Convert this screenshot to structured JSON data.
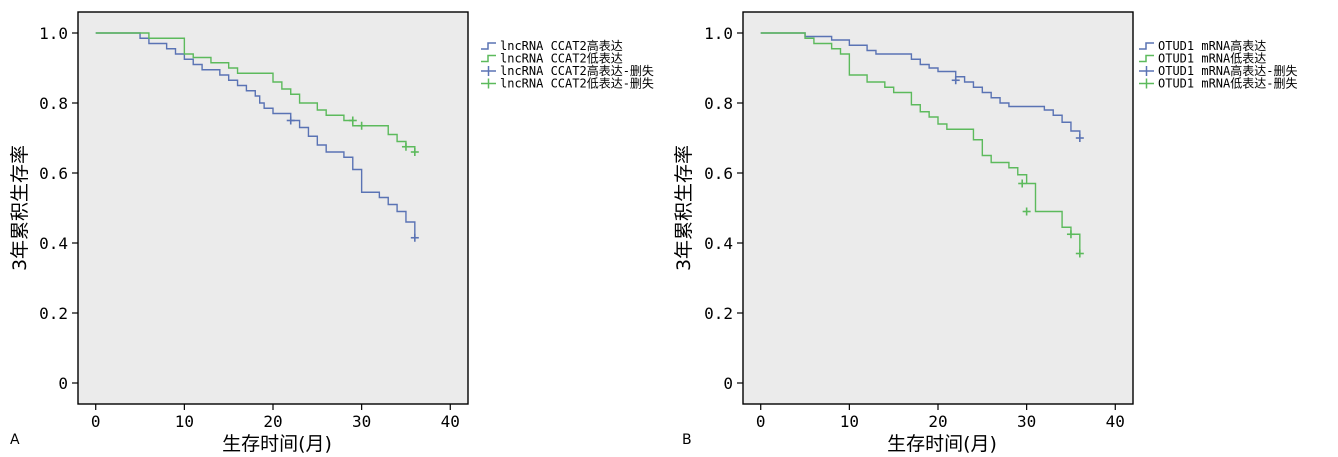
{
  "chart_data": [
    {
      "type": "line",
      "panel_label": "A",
      "xlabel": "生存时间(月)",
      "ylabel": "3年累积生存率",
      "xlim": [
        -2,
        42
      ],
      "ylim": [
        -0.06,
        1.06
      ],
      "x_ticks": [
        0,
        10,
        20,
        30,
        40
      ],
      "x_tick_labels": [
        "0",
        "10",
        "20",
        "30",
        "40"
      ],
      "y_ticks": [
        0,
        0.2,
        0.4,
        0.6,
        0.8,
        1.0
      ],
      "y_tick_labels": [
        "0",
        "0.2",
        "0.4",
        "0.6",
        "0.8",
        "1.0"
      ],
      "background": "#ebebeb",
      "grid": false,
      "legend_position": "outside-right",
      "legend": [
        {
          "label": "lncRNA CCAT2高表达",
          "color": "#5a73b4",
          "marker": "step"
        },
        {
          "label": "lncRNA CCAT2低表达",
          "color": "#5cba5c",
          "marker": "step"
        },
        {
          "label": "lncRNA CCAT2高表达-删失",
          "color": "#5a73b4",
          "marker": "plus"
        },
        {
          "label": "lncRNA CCAT2低表达-删失",
          "color": "#5cba5c",
          "marker": "plus"
        }
      ],
      "series": [
        {
          "name": "lncRNA CCAT2高表达",
          "color": "#5a73b4",
          "steps": [
            [
              0,
              1.0
            ],
            [
              5,
              0.985
            ],
            [
              6,
              0.97
            ],
            [
              8,
              0.955
            ],
            [
              9,
              0.94
            ],
            [
              10,
              0.925
            ],
            [
              11,
              0.91
            ],
            [
              12,
              0.895
            ],
            [
              14,
              0.88
            ],
            [
              15,
              0.865
            ],
            [
              16,
              0.85
            ],
            [
              17,
              0.835
            ],
            [
              18,
              0.82
            ],
            [
              18.5,
              0.8
            ],
            [
              19,
              0.785
            ],
            [
              20,
              0.77
            ],
            [
              22,
              0.75
            ],
            [
              23,
              0.73
            ],
            [
              24,
              0.705
            ],
            [
              25,
              0.68
            ],
            [
              26,
              0.66
            ],
            [
              28,
              0.645
            ],
            [
              29,
              0.61
            ],
            [
              30,
              0.545
            ],
            [
              32,
              0.53
            ],
            [
              33,
              0.51
            ],
            [
              34,
              0.49
            ],
            [
              35,
              0.46
            ],
            [
              36,
              0.415
            ]
          ],
          "censored": [
            [
              22,
              0.75
            ],
            [
              36,
              0.415
            ]
          ]
        },
        {
          "name": "lncRNA CCAT2低表达",
          "color": "#5cba5c",
          "steps": [
            [
              0,
              1.0
            ],
            [
              6,
              0.985
            ],
            [
              10,
              0.94
            ],
            [
              11,
              0.93
            ],
            [
              13,
              0.915
            ],
            [
              15,
              0.9
            ],
            [
              16,
              0.885
            ],
            [
              20,
              0.86
            ],
            [
              21,
              0.84
            ],
            [
              22,
              0.825
            ],
            [
              23,
              0.8
            ],
            [
              25,
              0.78
            ],
            [
              26,
              0.765
            ],
            [
              28,
              0.75
            ],
            [
              29,
              0.735
            ],
            [
              33,
              0.71
            ],
            [
              34,
              0.69
            ],
            [
              35,
              0.675
            ],
            [
              36,
              0.66
            ]
          ],
          "censored": [
            [
              29,
              0.75
            ],
            [
              30,
              0.735
            ],
            [
              35,
              0.675
            ],
            [
              36,
              0.66
            ]
          ]
        }
      ]
    },
    {
      "type": "line",
      "panel_label": "B",
      "xlabel": "生存时间(月)",
      "ylabel": "3年累积生存率",
      "xlim": [
        -2,
        42
      ],
      "ylim": [
        -0.06,
        1.06
      ],
      "x_ticks": [
        0,
        10,
        20,
        30,
        40
      ],
      "x_tick_labels": [
        "0",
        "10",
        "20",
        "30",
        "40"
      ],
      "y_ticks": [
        0,
        0.2,
        0.4,
        0.6,
        0.8,
        1.0
      ],
      "y_tick_labels": [
        "0",
        "0.2",
        "0.4",
        "0.6",
        "0.8",
        "1.0"
      ],
      "background": "#ebebeb",
      "grid": false,
      "legend_position": "outside-right",
      "legend": [
        {
          "label": "OTUD1 mRNA高表达",
          "color": "#5a73b4",
          "marker": "step"
        },
        {
          "label": "OTUD1 mRNA低表达",
          "color": "#5cba5c",
          "marker": "step"
        },
        {
          "label": "OTUD1 mRNA高表达-删失",
          "color": "#5a73b4",
          "marker": "plus"
        },
        {
          "label": "OTUD1 mRNA低表达-删失",
          "color": "#5cba5c",
          "marker": "plus"
        }
      ],
      "series": [
        {
          "name": "OTUD1 mRNA高表达",
          "color": "#5a73b4",
          "steps": [
            [
              0,
              1.0
            ],
            [
              5,
              0.99
            ],
            [
              8,
              0.98
            ],
            [
              10,
              0.965
            ],
            [
              12,
              0.95
            ],
            [
              13,
              0.94
            ],
            [
              17,
              0.925
            ],
            [
              18,
              0.91
            ],
            [
              19,
              0.9
            ],
            [
              20,
              0.89
            ],
            [
              22,
              0.875
            ],
            [
              23,
              0.86
            ],
            [
              24,
              0.845
            ],
            [
              25,
              0.83
            ],
            [
              26,
              0.815
            ],
            [
              27,
              0.8
            ],
            [
              28,
              0.79
            ],
            [
              32,
              0.78
            ],
            [
              33,
              0.765
            ],
            [
              34,
              0.745
            ],
            [
              35,
              0.72
            ],
            [
              36,
              0.7
            ]
          ],
          "censored": [
            [
              22,
              0.865
            ],
            [
              36,
              0.7
            ]
          ]
        },
        {
          "name": "OTUD1 mRNA低表达",
          "color": "#5cba5c",
          "steps": [
            [
              0,
              1.0
            ],
            [
              5,
              0.985
            ],
            [
              6,
              0.97
            ],
            [
              8,
              0.955
            ],
            [
              9,
              0.94
            ],
            [
              10,
              0.88
            ],
            [
              12,
              0.86
            ],
            [
              14,
              0.845
            ],
            [
              15,
              0.83
            ],
            [
              17,
              0.795
            ],
            [
              18,
              0.775
            ],
            [
              19,
              0.76
            ],
            [
              20,
              0.74
            ],
            [
              21,
              0.725
            ],
            [
              24,
              0.695
            ],
            [
              25,
              0.65
            ],
            [
              26,
              0.63
            ],
            [
              28,
              0.615
            ],
            [
              29,
              0.595
            ],
            [
              30,
              0.57
            ],
            [
              31,
              0.49
            ],
            [
              32,
              0.49
            ],
            [
              34,
              0.445
            ],
            [
              35,
              0.425
            ],
            [
              36,
              0.37
            ]
          ],
          "censored": [
            [
              29.5,
              0.57
            ],
            [
              30,
              0.49
            ],
            [
              35,
              0.425
            ],
            [
              36,
              0.37
            ]
          ]
        }
      ]
    }
  ]
}
